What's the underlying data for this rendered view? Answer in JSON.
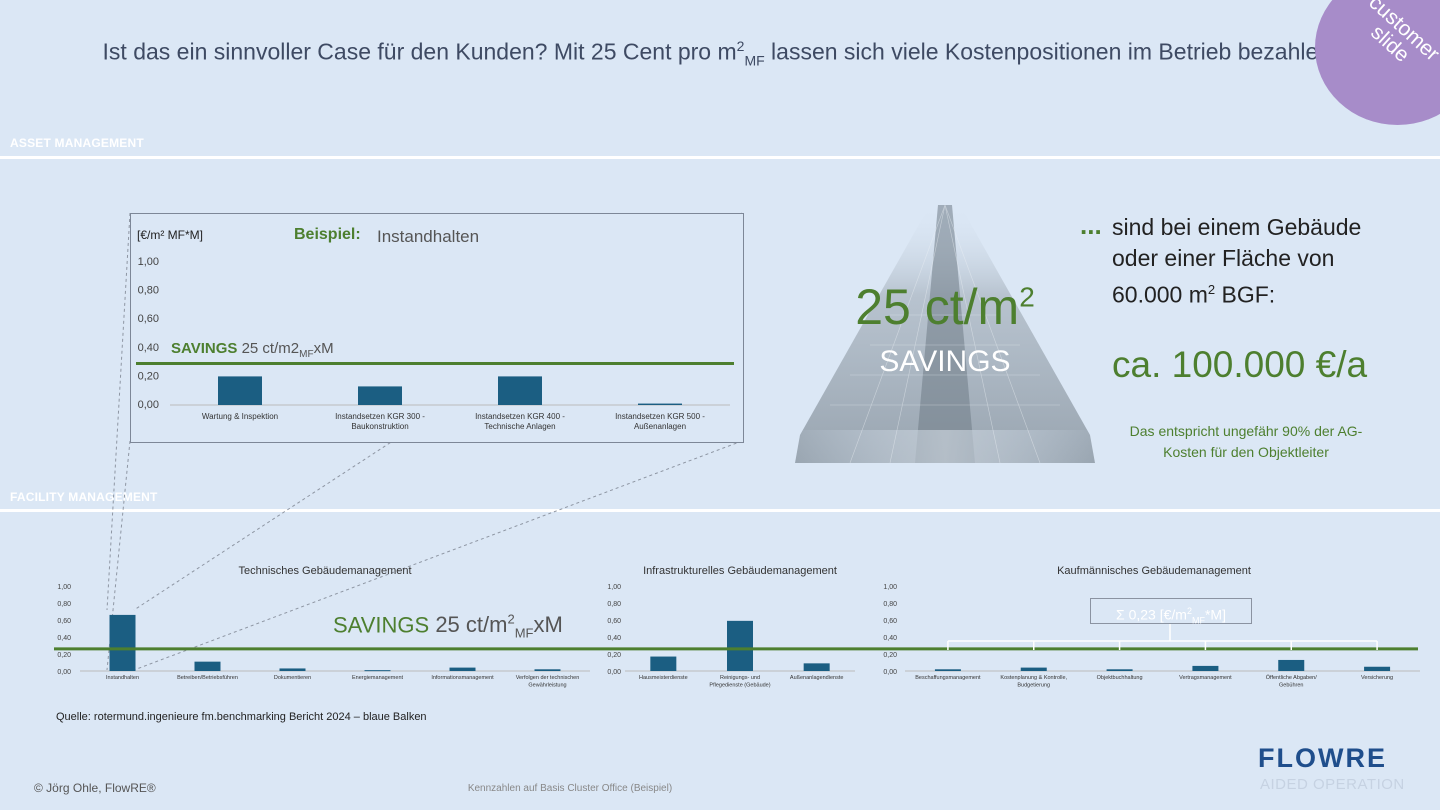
{
  "headline": "Ist das ein sinnvoller Case für den Kunden? Mit 25 Cent pro m² MF lassen sich viele Kostenpositionen im Betrieb bezahlen.",
  "headline_parts": {
    "pre": "Ist das ein sinnvoller Case für den Kunden? Mit 25 Cent pro m",
    "sup": "2",
    "sub": "MF",
    "post": " lassen sich viele Kostenpositionen im Betrieb bezahlen."
  },
  "badge": {
    "line1": "customer",
    "line2": "slide"
  },
  "sections": {
    "asset": "ASSET MANAGEMENT",
    "facility": "FACILITY MANAGEMENT"
  },
  "zoom": {
    "unit": "[€/m² MF*M]",
    "beispiel": "Beispiel:",
    "title": "Instandhalten",
    "savings_label": "SAVINGS",
    "savings_value_pre": "25 ct/m2",
    "savings_sub": "MF",
    "savings_value_post": "xM"
  },
  "center": {
    "big": "25 ct/m²",
    "big_base": "25 ct/m",
    "big_sup": "2",
    "savings": "SAVINGS"
  },
  "right": {
    "dots": "...",
    "line1": "sind bei einem Gebäude",
    "line2": "oder einer Fläche von",
    "line3_pre": "60.000 m",
    "line3_sup": "2",
    "line3_post": " BGF:",
    "ca": "ca. 100.000 €/a",
    "entspricht": "Das entspricht ungefähr 90% der AG-Kosten für den Objektleiter"
  },
  "bottom_savings": {
    "label": "SAVINGS",
    "pre": "25 ct/m",
    "sup": "2",
    "sub": "MF",
    "post": "xM"
  },
  "sum_box": {
    "pre": "Σ 0,23 [€/m",
    "sup": "2",
    "sub": "MF",
    "post": "*M]"
  },
  "quelle": "Quelle: rotermund.ingenieure fm.benchmarking Bericht 2024 – blaue Balken",
  "copyright": "© Jörg Ohle, FlowRE®",
  "footer_center": "Kennzahlen auf Basis Cluster Office (Beispiel)",
  "logo": {
    "text": "FLOWRE",
    "sub": "AIDED OPERATION"
  },
  "colors": {
    "bar": "#1b5e82",
    "savings_line": "#4d7f2f",
    "background": "#dbe7f5",
    "badge": "#a78cc9"
  },
  "chart_data": [
    {
      "type": "bar",
      "title": "Instandhalten",
      "ylabel": "[€/m² MF*M]",
      "categories": [
        "Wartung & Inspektion",
        "Instandsetzen KGR 300 - Baukonstruktion",
        "Instandsetzen KGR 400 - Technische Anlagen",
        "Instandsetzen KGR 500 - Außenanlagen"
      ],
      "values": [
        0.2,
        0.13,
        0.2,
        0.01
      ],
      "ylim": [
        0,
        1.0
      ],
      "yticks": [
        "1,00",
        "0,80",
        "0,60",
        "0,40",
        "0,20",
        "0,00"
      ],
      "reference_line": 0.29,
      "grid": false
    },
    {
      "type": "bar",
      "title": "Technisches Gebäudemanagement",
      "categories": [
        "Instandhalten",
        "Betreiben/Betriebsführen",
        "Dokumentieren",
        "Energiemanagement",
        "Informationsmanagement",
        "Verfolgen der technischen Gewährleistung"
      ],
      "values": [
        0.66,
        0.11,
        0.03,
        0.01,
        0.04,
        0.02
      ],
      "ylim": [
        0,
        1.0
      ],
      "yticks": [
        "1,00",
        "0,80",
        "0,60",
        "0,40",
        "0,20",
        "0,00"
      ],
      "reference_line": 0.26,
      "grid": false
    },
    {
      "type": "bar",
      "title": "Infrastrukturelles Gebäudemanagement",
      "categories": [
        "Hausmeisterdienste",
        "Reinigungs- und Pflegedienste (Gebäude)",
        "Außenanlagendienste"
      ],
      "values": [
        0.17,
        0.59,
        0.09
      ],
      "ylim": [
        0,
        1.0
      ],
      "yticks": [
        "1,00",
        "0,80",
        "0,60",
        "0,40",
        "0,20",
        "0,00"
      ],
      "reference_line": 0.26,
      "grid": false
    },
    {
      "type": "bar",
      "title": "Kaufmännisches Gebäudemanagement",
      "categories": [
        "Beschaffungsmanagement",
        "Kostenplanung & Kontrolle, Budgetierung",
        "Objektbuchhaltung",
        "Vertragsmanagement",
        "Öffentliche Abgaben/ Gebühren",
        "Versicherung"
      ],
      "values": [
        0.02,
        0.04,
        0.02,
        0.06,
        0.13,
        0.05
      ],
      "ylim": [
        0,
        1.0
      ],
      "yticks": [
        "1,00",
        "0,80",
        "0,60",
        "0,40",
        "0,20",
        "0,00"
      ],
      "reference_line": 0.26,
      "grid": false
    }
  ]
}
